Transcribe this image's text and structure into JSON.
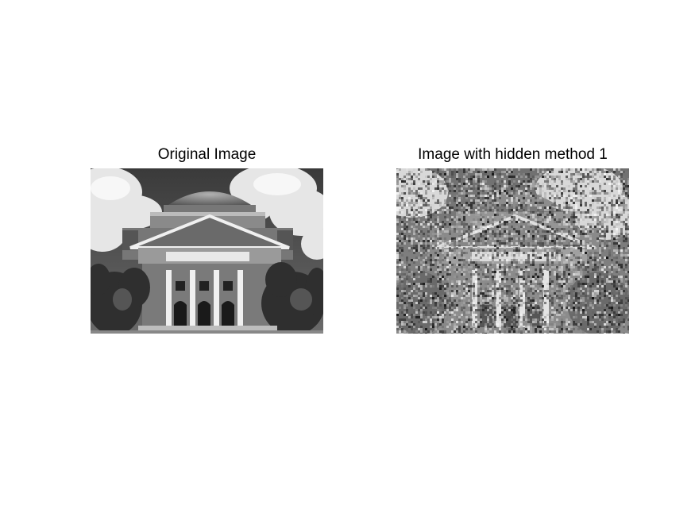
{
  "figure": {
    "panels": [
      {
        "title": "Original Image",
        "image": "grayscale photo of a domed neoclassical auditorium with columned portico, trees and cloudy sky"
      },
      {
        "title": "Image with hidden method 1",
        "image": "same building photo heavily overlaid with random salt-and-pepper noise"
      }
    ]
  },
  "colors": {
    "background": "#ffffff",
    "title_text": "#000000"
  }
}
